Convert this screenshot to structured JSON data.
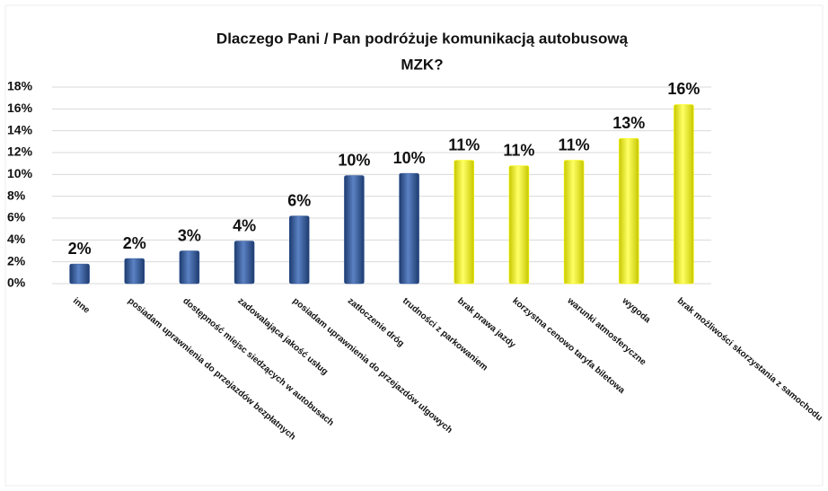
{
  "chart_data": {
    "type": "bar",
    "title": [
      "Dlaczego Pani / Pan podróżuje komunikacją autobusową",
      "MZK?"
    ],
    "categories": [
      "inne",
      "posiadam uprawnienia do przejazdów bezpłatnych",
      "dostępność miejsc siedzących w autobusach",
      "zadowalająca jakość usług",
      "posiadam uprawnienia do przejazdów ulgowych",
      "zatłoczenie dróg",
      "trudności z parkowaniem",
      "brak prawa jazdy",
      "korzystna cenowo taryfa biletowa",
      "warunki atmosferyczne",
      "wygoda",
      "brak możliwości skorzystania z samochodu"
    ],
    "values": [
      1.8,
      2.3,
      3.0,
      3.9,
      6.2,
      9.9,
      10.1,
      11.3,
      10.8,
      11.3,
      13.3,
      16.4
    ],
    "value_labels": [
      "2%",
      "2%",
      "3%",
      "4%",
      "6%",
      "10%",
      "10%",
      "11%",
      "11%",
      "11%",
      "13%",
      "16%"
    ],
    "colors": [
      "#2e5597",
      "#2e5597",
      "#2e5597",
      "#2e5597",
      "#2e5597",
      "#2e5597",
      "#2e5597",
      "#ffff00",
      "#ffff00",
      "#ffff00",
      "#ffff00",
      "#ffff00"
    ],
    "ylim": [
      0,
      18
    ],
    "yticks": [
      {
        "value": 0,
        "label": "0%"
      },
      {
        "value": 2,
        "label": "2%"
      },
      {
        "value": 4,
        "label": "4%"
      },
      {
        "value": 6,
        "label": "6%"
      },
      {
        "value": 8,
        "label": "8%"
      },
      {
        "value": 10,
        "label": "10%"
      },
      {
        "value": 12,
        "label": "12%"
      },
      {
        "value": 14,
        "label": "14%"
      },
      {
        "value": 16,
        "label": "16%"
      },
      {
        "value": 18,
        "label": "18%"
      }
    ],
    "grid": true
  }
}
